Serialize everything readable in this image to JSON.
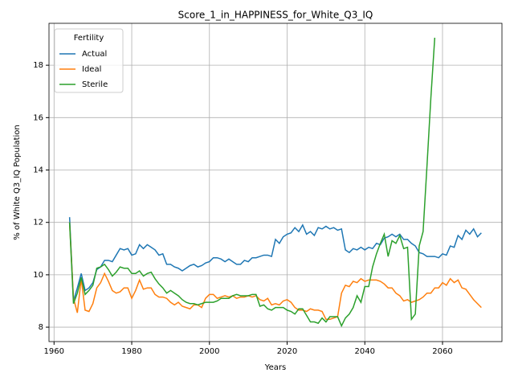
{
  "chart_data": {
    "type": "line",
    "title": "Score_1_in_HAPPINESS_for_White_Q3_IQ",
    "xlabel": "Years",
    "ylabel": "% of White Q3_IQ Population",
    "x": [
      1964,
      1965,
      1966,
      1967,
      1968,
      1969,
      1970,
      1971,
      1972,
      1973,
      1974,
      1975,
      1976,
      1977,
      1978,
      1979,
      1980,
      1981,
      1982,
      1983,
      1984,
      1985,
      1986,
      1987,
      1988,
      1989,
      1990,
      1991,
      1992,
      1993,
      1994,
      1995,
      1996,
      1997,
      1998,
      1999,
      2000,
      2001,
      2002,
      2003,
      2004,
      2005,
      2006,
      2007,
      2008,
      2009,
      2010,
      2011,
      2012,
      2013,
      2014,
      2015,
      2016,
      2017,
      2018,
      2019,
      2020,
      2021,
      2022,
      2023,
      2024,
      2025,
      2026,
      2027,
      2028,
      2029,
      2030,
      2031,
      2032,
      2033,
      2034,
      2035,
      2036,
      2037,
      2038,
      2039,
      2040,
      2041,
      2042,
      2043,
      2044,
      2045,
      2046,
      2047,
      2048,
      2049,
      2050,
      2051,
      2052,
      2053,
      2054,
      2055,
      2056,
      2057,
      2058,
      2059,
      2060,
      2061,
      2062,
      2063,
      2064,
      2065,
      2066,
      2067,
      2068,
      2069,
      2070
    ],
    "series": [
      {
        "name": "Actual",
        "color": "#1f77b4",
        "values": [
          12.2,
          9.0,
          9.5,
          10.05,
          9.4,
          9.5,
          9.7,
          10.2,
          10.3,
          10.55,
          10.55,
          10.5,
          10.75,
          11.0,
          10.95,
          11.0,
          10.75,
          10.8,
          11.15,
          11.0,
          11.15,
          11.05,
          10.95,
          10.75,
          10.8,
          10.4,
          10.4,
          10.3,
          10.25,
          10.15,
          10.25,
          10.35,
          10.4,
          10.3,
          10.35,
          10.45,
          10.5,
          10.65,
          10.65,
          10.6,
          10.5,
          10.6,
          10.5,
          10.4,
          10.4,
          10.55,
          10.5,
          10.65,
          10.65,
          10.7,
          10.75,
          10.75,
          10.7,
          11.35,
          11.2,
          11.45,
          11.55,
          11.6,
          11.8,
          11.65,
          11.9,
          11.55,
          11.65,
          11.5,
          11.8,
          11.75,
          11.85,
          11.75,
          11.8,
          11.7,
          11.75,
          10.95,
          10.85,
          11.0,
          10.95,
          11.05,
          10.95,
          11.05,
          11.0,
          11.2,
          11.15,
          11.4,
          11.45,
          11.55,
          11.45,
          11.55,
          11.35,
          11.35,
          11.2,
          11.1,
          10.85,
          10.8,
          10.7,
          10.7,
          10.7,
          10.65,
          10.8,
          10.75,
          11.1,
          11.05,
          11.5,
          11.35,
          11.7,
          11.55,
          11.75,
          11.45,
          11.6
        ]
      },
      {
        "name": "Ideal",
        "color": "#ff7f0e",
        "values": [
          12.0,
          9.1,
          8.55,
          9.85,
          8.65,
          8.6,
          8.9,
          9.5,
          9.7,
          10.05,
          9.75,
          9.4,
          9.3,
          9.35,
          9.5,
          9.5,
          9.1,
          9.4,
          9.8,
          9.45,
          9.5,
          9.5,
          9.25,
          9.15,
          9.15,
          9.1,
          8.95,
          8.85,
          8.95,
          8.8,
          8.75,
          8.7,
          8.85,
          8.85,
          8.75,
          9.1,
          9.25,
          9.25,
          9.1,
          9.15,
          9.2,
          9.15,
          9.2,
          9.1,
          9.15,
          9.15,
          9.2,
          9.15,
          9.2,
          9.05,
          9.0,
          9.1,
          8.85,
          8.9,
          8.85,
          9.0,
          9.05,
          8.95,
          8.75,
          8.65,
          8.65,
          8.6,
          8.7,
          8.65,
          8.65,
          8.6,
          8.3,
          8.3,
          8.35,
          8.4,
          9.3,
          9.6,
          9.55,
          9.75,
          9.7,
          9.85,
          9.75,
          9.8,
          9.8,
          9.8,
          9.75,
          9.65,
          9.5,
          9.5,
          9.3,
          9.2,
          9.0,
          9.05,
          8.95,
          9.0,
          9.05,
          9.15,
          9.3,
          9.3,
          9.5,
          9.5,
          9.7,
          9.6,
          9.85,
          9.7,
          9.8,
          9.5,
          9.45,
          9.25,
          9.05,
          8.9,
          8.75
        ]
      },
      {
        "name": "Sterile",
        "color": "#2ca02c",
        "values": [
          12.0,
          8.9,
          9.3,
          9.9,
          9.25,
          9.4,
          9.6,
          10.25,
          10.3,
          10.4,
          10.2,
          9.95,
          10.1,
          10.3,
          10.25,
          10.25,
          10.05,
          10.05,
          10.15,
          9.95,
          10.05,
          10.1,
          9.85,
          9.65,
          9.5,
          9.3,
          9.4,
          9.3,
          9.2,
          9.05,
          8.95,
          8.9,
          8.9,
          8.85,
          8.9,
          8.95,
          8.95,
          8.95,
          9.0,
          9.1,
          9.1,
          9.1,
          9.2,
          9.25,
          9.2,
          9.2,
          9.2,
          9.25,
          9.25,
          8.8,
          8.85,
          8.7,
          8.65,
          8.75,
          8.75,
          8.75,
          8.65,
          8.6,
          8.5,
          8.7,
          8.7,
          8.45,
          8.2,
          8.2,
          8.15,
          8.35,
          8.2,
          8.4,
          8.4,
          8.4,
          8.05,
          8.35,
          8.5,
          8.75,
          9.2,
          8.95,
          9.55,
          9.55,
          10.3,
          10.8,
          11.2,
          11.55,
          10.7,
          11.3,
          11.2,
          11.5,
          11.0,
          11.05,
          8.3,
          8.5,
          11.1,
          11.65,
          14.15,
          16.75,
          19.05,
          null,
          null,
          null,
          null,
          null,
          null,
          null,
          null,
          null,
          null,
          null,
          null
        ]
      }
    ],
    "xlim": [
      1958.7,
      2075.3
    ],
    "xticks": [
      1960,
      1980,
      2000,
      2020,
      2040,
      2060
    ],
    "ylim": [
      7.45,
      19.6
    ],
    "yticks": [
      8,
      10,
      12,
      14,
      16,
      18
    ],
    "grid": true,
    "legend": {
      "title": "Fertility",
      "position": "upper left"
    }
  }
}
